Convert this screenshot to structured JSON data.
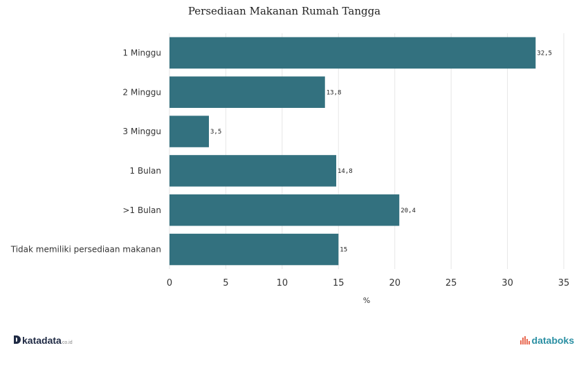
{
  "chart_data": {
    "type": "bar",
    "orientation": "horizontal",
    "title": "Persediaan Makanan Rumah Tangga",
    "xlabel": "%",
    "ylabel": "",
    "xlim": [
      0,
      35
    ],
    "xticks": [
      0,
      5,
      10,
      15,
      20,
      25,
      30,
      35
    ],
    "grid": true,
    "categories": [
      "1 Minggu",
      "2 Minggu",
      "3 Minggu",
      "1 Bulan",
      ">1 Bulan",
      "Tidak memiliki persediaan makanan"
    ],
    "values": [
      32.5,
      13.8,
      3.5,
      14.8,
      20.4,
      15
    ],
    "value_labels": [
      "32,5",
      "13,8",
      "3,5",
      "14,8",
      "20,4",
      "15"
    ],
    "bar_color": "#33717f"
  },
  "footer": {
    "left_logo": "katadata",
    "left_logo_sub": "co.id",
    "right_logo": "databoks"
  }
}
